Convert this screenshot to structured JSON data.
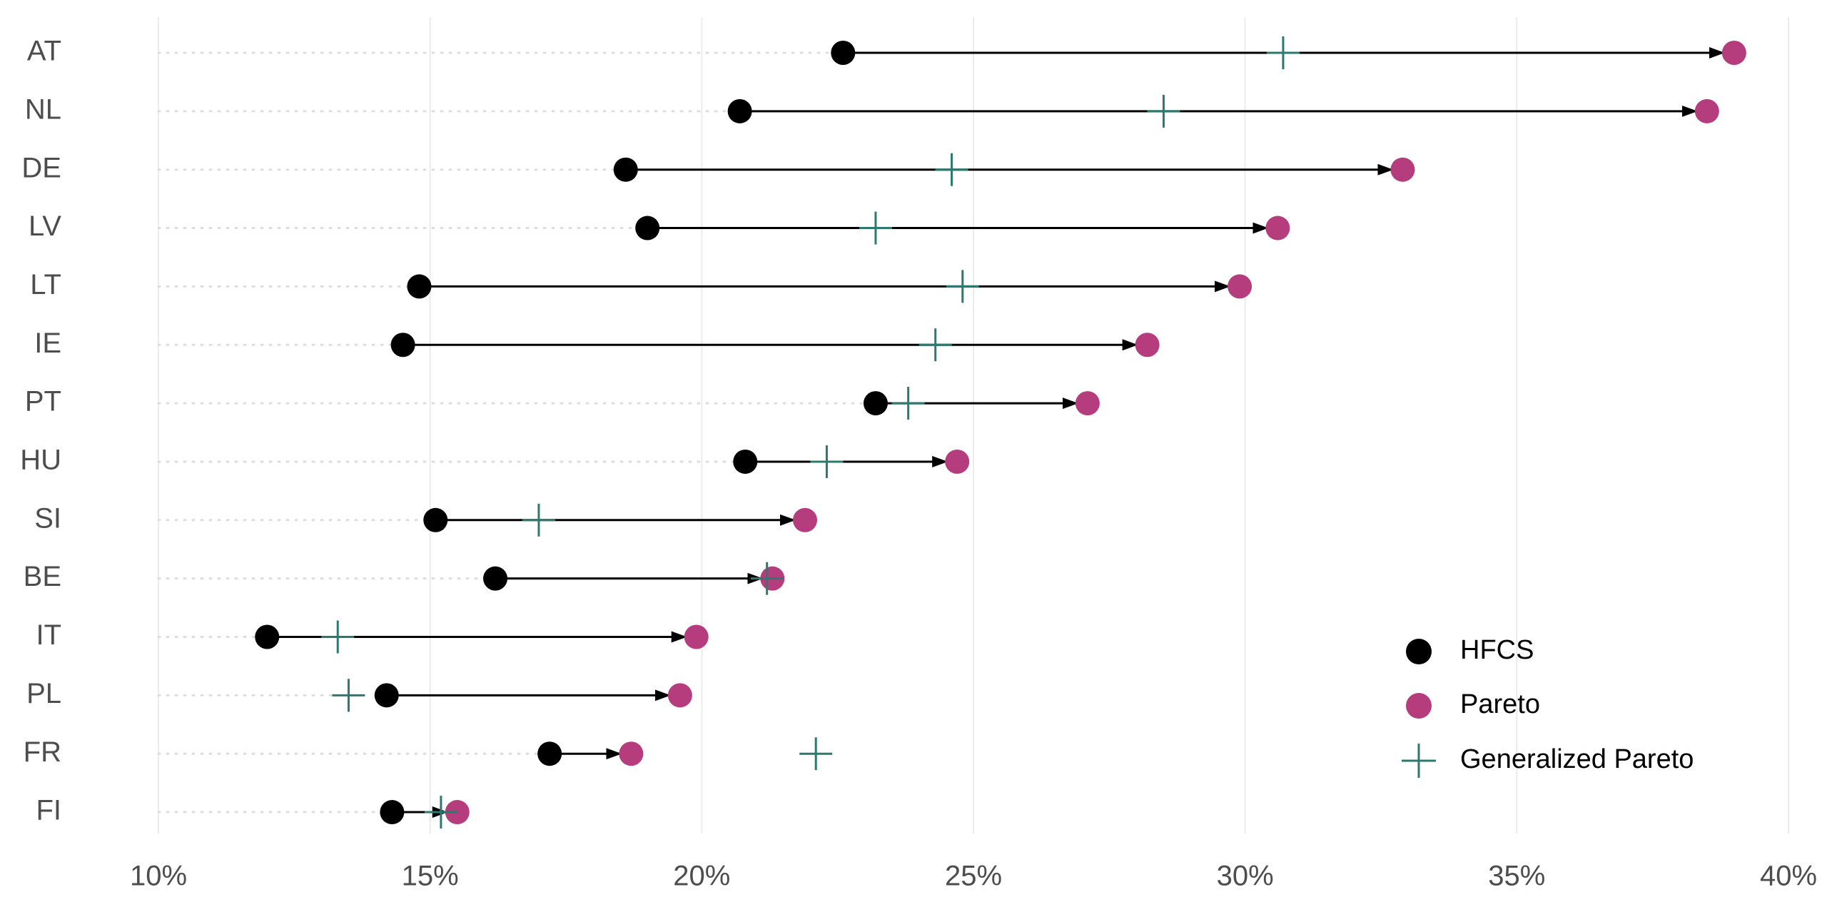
{
  "chart_data": {
    "type": "dumbbell",
    "title": "",
    "xlabel": "",
    "ylabel": "",
    "x_axis_format": "percent",
    "xlim": [
      10,
      40
    ],
    "x_ticks": [
      {
        "value": 10,
        "label": "10%"
      },
      {
        "value": 15,
        "label": "15%"
      },
      {
        "value": 20,
        "label": "20%"
      },
      {
        "value": 25,
        "label": "25%"
      },
      {
        "value": 30,
        "label": "30%"
      },
      {
        "value": 35,
        "label": "35%"
      },
      {
        "value": 40,
        "label": "40%"
      }
    ],
    "grid": true,
    "legend_position": "bottom-right",
    "categories": [
      "AT",
      "NL",
      "DE",
      "LV",
      "LT",
      "IE",
      "PT",
      "HU",
      "SI",
      "BE",
      "IT",
      "PL",
      "FR",
      "FI"
    ],
    "series": [
      {
        "name": "HFCS",
        "marker": "circle",
        "color": "#000000",
        "values": [
          22.6,
          20.7,
          18.6,
          19.0,
          14.8,
          14.5,
          23.2,
          20.8,
          15.1,
          16.2,
          12.0,
          14.2,
          17.2,
          14.3
        ]
      },
      {
        "name": "Pareto",
        "marker": "circle",
        "color": "#b53c7d",
        "values": [
          39.0,
          38.5,
          32.9,
          30.6,
          29.9,
          28.2,
          27.1,
          24.7,
          21.9,
          21.3,
          19.9,
          19.6,
          18.7,
          15.5
        ]
      },
      {
        "name": "Generalized Pareto",
        "marker": "cross",
        "color": "#2c7970",
        "values": [
          30.7,
          28.5,
          24.6,
          23.2,
          24.8,
          24.3,
          23.8,
          22.3,
          17.0,
          21.2,
          13.3,
          13.5,
          22.1,
          15.2
        ]
      }
    ],
    "arrows": {
      "from_series": "HFCS",
      "to_series": "Pareto",
      "color": "#000000"
    }
  }
}
